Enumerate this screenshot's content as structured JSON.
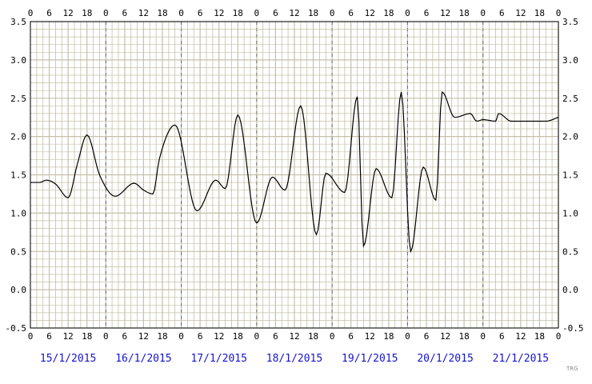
{
  "chart_data": {
    "type": "line",
    "title": "",
    "xlabel": "",
    "ylabel": "",
    "ylim": [
      -0.5,
      3.5
    ],
    "y_ticks": [
      "3.5",
      "3.0",
      "2.5",
      "2.0",
      "1.5",
      "1.0",
      "0.5",
      "0.0",
      "-0.5"
    ],
    "hour_ticks": [
      "0",
      "6",
      "12",
      "18"
    ],
    "hour_tick_end": "0",
    "days": [
      "15/1/2015",
      "16/1/2015",
      "17/1/2015",
      "18/1/2015",
      "19/1/2015",
      "20/1/2015",
      "21/1/2015"
    ],
    "grid": true,
    "series": [
      {
        "x_hours": [
          0,
          3,
          5,
          8,
          12,
          15,
          18,
          22,
          27,
          33,
          36,
          39,
          41,
          46,
          53,
          59,
          62,
          66,
          72,
          77,
          81,
          86,
          91,
          94,
          100,
          104,
          106,
          110,
          115,
          118,
          121,
          125,
          129,
          131,
          135,
          140,
          142,
          144,
          148,
          149,
          153,
          158,
          161,
          164,
          168
        ],
        "values": [
          1.4,
          1.4,
          1.43,
          1.38,
          1.2,
          1.65,
          2.02,
          1.5,
          1.22,
          1.39,
          1.3,
          1.25,
          1.7,
          2.15,
          1.03,
          1.43,
          1.32,
          2.28,
          0.87,
          1.47,
          1.3,
          2.4,
          0.72,
          1.52,
          1.27,
          2.52,
          0.57,
          1.58,
          1.2,
          2.58,
          0.5,
          1.6,
          1.17,
          2.58,
          2.25,
          2.3,
          2.2,
          2.22,
          2.2,
          2.3,
          2.2,
          2.2,
          2.2,
          2.2,
          2.25
        ]
      }
    ],
    "credit": "TRG",
    "colors": {
      "grid": "#c4c0aa",
      "line": "#000000",
      "date_labels": "#1414d2"
    }
  }
}
